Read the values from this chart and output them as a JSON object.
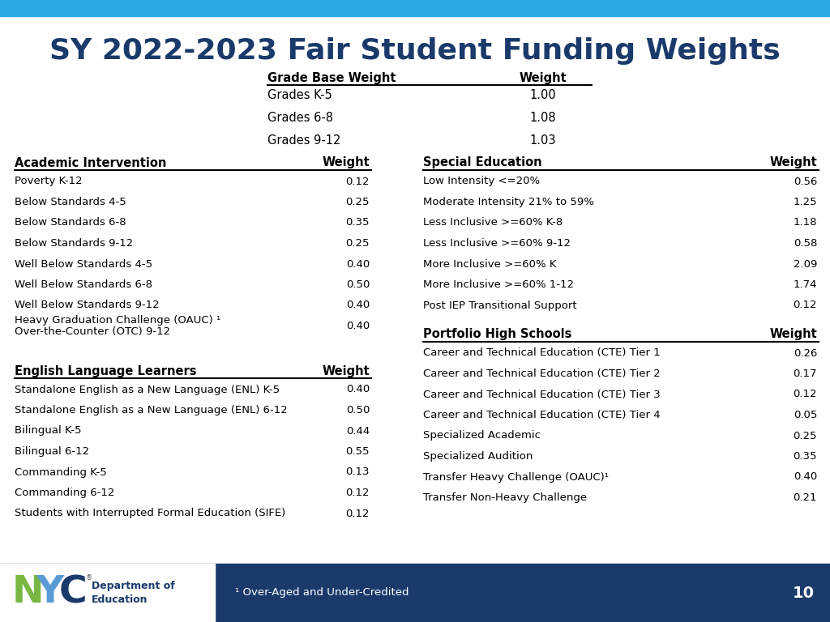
{
  "title": "SY 2022-2023 Fair Student Funding Weights",
  "title_color": "#1a3a6b",
  "header_bar_color": "#29abe2",
  "footer_bar_color": "#1a3a6b",
  "footer_text": "¹ Over-Aged and Under-Credited",
  "page_number": "10",
  "grade_base_weight": {
    "header": [
      "Grade Base Weight",
      "Weight"
    ],
    "rows": [
      [
        "Grades K-5",
        "1.00"
      ],
      [
        "Grades 6-8",
        "1.08"
      ],
      [
        "Grades 9-12",
        "1.03"
      ]
    ]
  },
  "academic_intervention": {
    "header": [
      "Academic Intervention",
      "Weight"
    ],
    "rows": [
      [
        "Poverty K-12",
        "0.12"
      ],
      [
        "Below Standards 4-5",
        "0.25"
      ],
      [
        "Below Standards 6-8",
        "0.35"
      ],
      [
        "Below Standards 9-12",
        "0.25"
      ],
      [
        "Well Below Standards 4-5",
        "0.40"
      ],
      [
        "Well Below Standards 6-8",
        "0.50"
      ],
      [
        "Well Below Standards 9-12",
        "0.40"
      ],
      [
        "Heavy Graduation Challenge (OAUC) ¹\nOver-the-Counter (OTC) 9-12",
        "0.40"
      ]
    ]
  },
  "english_language_learners": {
    "header": [
      "English Language Learners",
      "Weight"
    ],
    "rows": [
      [
        "Standalone English as a New Language (ENL) K-5",
        "0.40"
      ],
      [
        "Standalone English as a New Language (ENL) 6-12",
        "0.50"
      ],
      [
        "Bilingual K-5",
        "0.44"
      ],
      [
        "Bilingual 6-12",
        "0.55"
      ],
      [
        "Commanding K-5",
        "0.13"
      ],
      [
        "Commanding 6-12",
        "0.12"
      ],
      [
        "Students with Interrupted Formal Education (SIFE)",
        "0.12"
      ]
    ]
  },
  "special_education": {
    "header": [
      "Special Education",
      "Weight"
    ],
    "rows": [
      [
        "Low Intensity <=20%",
        "0.56"
      ],
      [
        "Moderate Intensity 21% to 59%",
        "1.25"
      ],
      [
        "Less Inclusive >=60% K-8",
        "1.18"
      ],
      [
        "Less Inclusive >=60% 9-12",
        "0.58"
      ],
      [
        "More Inclusive >=60% K",
        "2.09"
      ],
      [
        "More Inclusive >=60% 1-12",
        "1.74"
      ],
      [
        "Post IEP Transitional Support",
        "0.12"
      ]
    ]
  },
  "portfolio_high_schools": {
    "header": [
      "Portfolio High Schools",
      "Weight"
    ],
    "rows": [
      [
        "Career and Technical Education (CTE) Tier 1",
        "0.26"
      ],
      [
        "Career and Technical Education (CTE) Tier 2",
        "0.17"
      ],
      [
        "Career and Technical Education (CTE) Tier 3",
        "0.12"
      ],
      [
        "Career and Technical Education (CTE) Tier 4",
        "0.05"
      ],
      [
        "Specialized Academic",
        "0.25"
      ],
      [
        "Specialized Audition",
        "0.35"
      ],
      [
        "Transfer Heavy Challenge (OAUC)¹",
        "0.40"
      ],
      [
        "Transfer Non-Heavy Challenge",
        "0.21"
      ]
    ]
  }
}
